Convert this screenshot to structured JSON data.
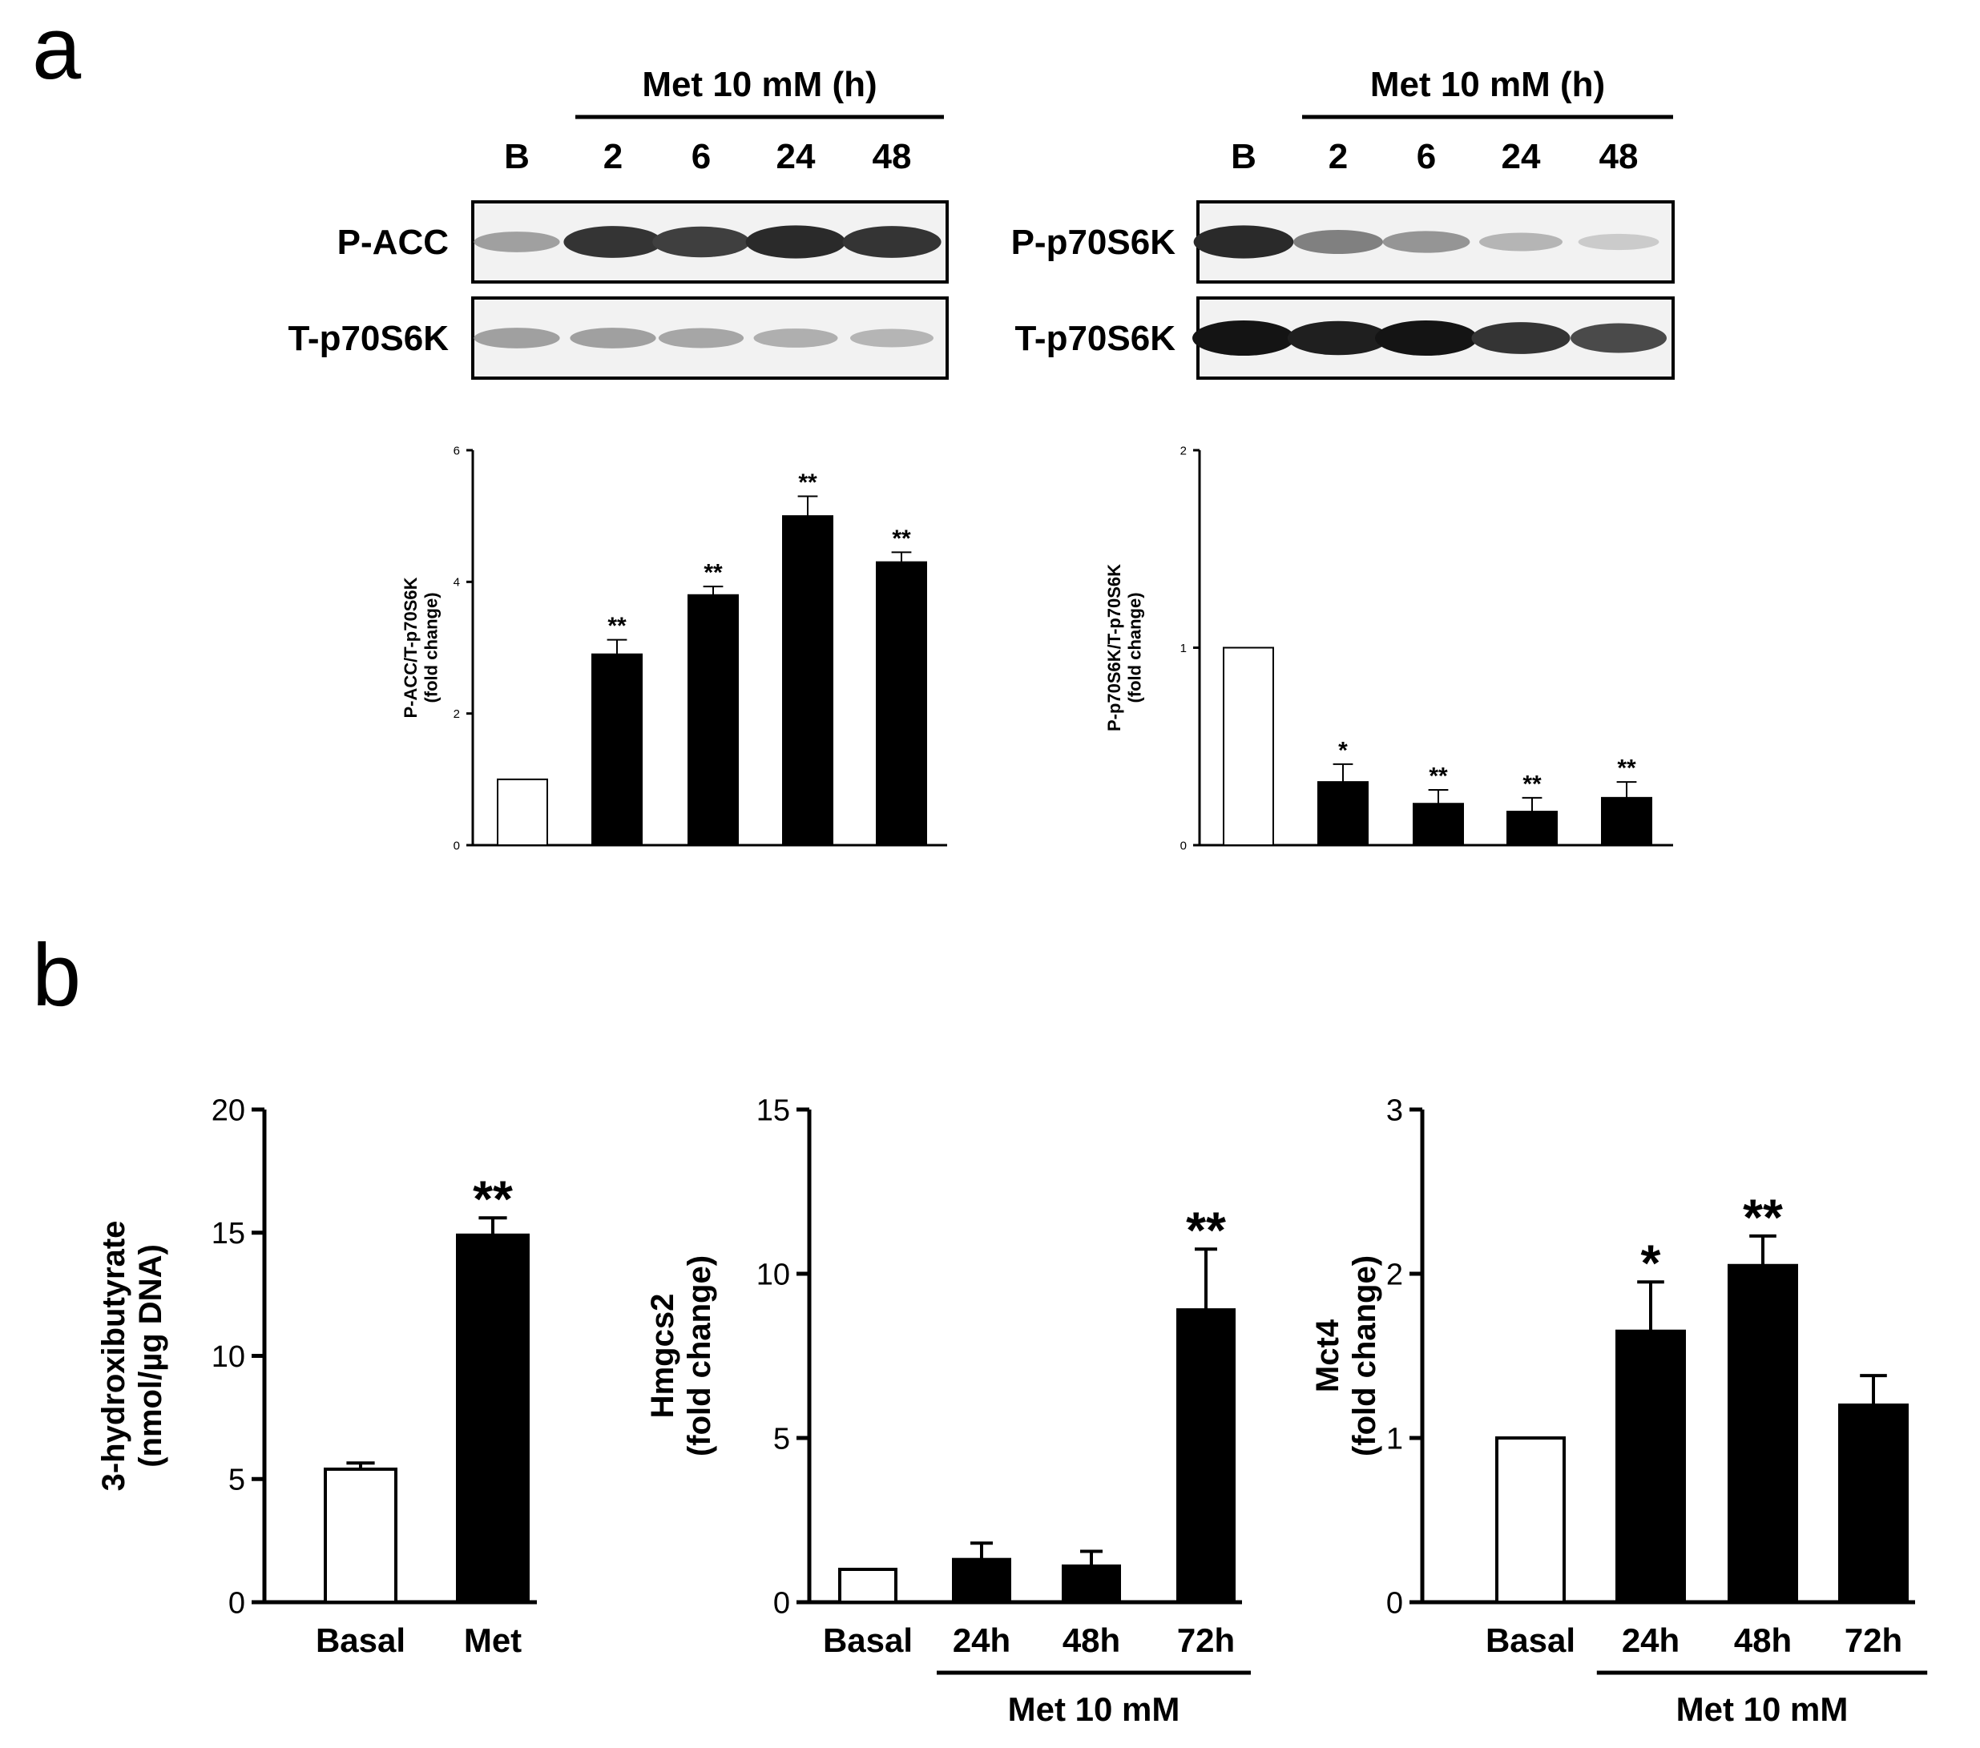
{
  "panel_labels": {
    "a": "a",
    "b": "b"
  },
  "colors": {
    "control_fill": "#ffffff",
    "treated_fill": "#000000",
    "axis": "#000000"
  },
  "blots": [
    {
      "header": "Met 10 mM (h)",
      "lanes": [
        "B",
        "2",
        "6",
        "24",
        "48"
      ],
      "rows": [
        {
          "label": "P-ACC",
          "intensities": [
            0.35,
            0.85,
            0.8,
            0.9,
            0.85
          ]
        },
        {
          "label": "T-p70S6K",
          "intensities": [
            0.35,
            0.35,
            0.32,
            0.28,
            0.25
          ]
        }
      ]
    },
    {
      "header": "Met 10 mM (h)",
      "lanes": [
        "B",
        "2",
        "6",
        "24",
        "48"
      ],
      "rows": [
        {
          "label": "P-p70S6K",
          "intensities": [
            0.9,
            0.5,
            0.4,
            0.25,
            0.15
          ]
        },
        {
          "label": "T-p70S6K",
          "intensities": [
            1.0,
            0.95,
            1.0,
            0.85,
            0.75
          ]
        }
      ]
    }
  ],
  "chart_data": [
    {
      "type": "bar",
      "ylabel": "P-ACC/T-p70S6K\n(fold change)",
      "xlabel": "",
      "ylim": [
        0,
        6
      ],
      "yticks": [
        "0",
        "2",
        "4",
        "6"
      ],
      "categories": [
        "B",
        "2",
        "6",
        "24",
        "48"
      ],
      "values": [
        1.0,
        2.9,
        3.8,
        5.0,
        4.3
      ],
      "errors": [
        0,
        0.22,
        0.13,
        0.3,
        0.15
      ],
      "significance": [
        "",
        "**",
        "**",
        "**",
        "**"
      ],
      "tick_labels_visible": false,
      "grid": false
    },
    {
      "type": "bar",
      "ylabel": "P-p70S6K/T-p70S6K\n(fold change)",
      "xlabel": "",
      "ylim": [
        0,
        2
      ],
      "yticks": [
        "0",
        "1",
        "2"
      ],
      "categories": [
        "B",
        "2",
        "6",
        "24",
        "48"
      ],
      "values": [
        1.0,
        0.32,
        0.21,
        0.17,
        0.24
      ],
      "errors": [
        0,
        0.09,
        0.07,
        0.07,
        0.08
      ],
      "significance": [
        "",
        "*",
        "**",
        "**",
        "**"
      ],
      "tick_labels_visible": false,
      "grid": false
    },
    {
      "type": "bar",
      "ylabel": "3-hydroxibutyrate\n(nmol/µg DNA)",
      "xlabel": "",
      "ylim": [
        0,
        20
      ],
      "yticks": [
        "0",
        "5",
        "10",
        "15",
        "20"
      ],
      "categories": [
        "Basal",
        "Met"
      ],
      "values": [
        5.4,
        14.9
      ],
      "errors": [
        0.25,
        0.7
      ],
      "significance": [
        "",
        "**"
      ],
      "grid": false
    },
    {
      "type": "bar",
      "ylabel": "Hmgcs2\n(fold change)",
      "xlabel": "",
      "ylim": [
        0,
        15
      ],
      "yticks": [
        "0",
        "5",
        "10",
        "15"
      ],
      "categories": [
        "Basal",
        "24h",
        "48h",
        "72h"
      ],
      "values": [
        1.0,
        1.3,
        1.1,
        8.9
      ],
      "errors": [
        0,
        0.5,
        0.45,
        1.85
      ],
      "significance": [
        "",
        "",
        "",
        "**"
      ],
      "group_label": "Met 10 mM",
      "grid": false
    },
    {
      "type": "bar",
      "ylabel": "Mct4\n(fold change)",
      "xlabel": "",
      "ylim": [
        0,
        3
      ],
      "yticks": [
        "0",
        "1",
        "2",
        "3"
      ],
      "categories": [
        "Basal",
        "24h",
        "48h",
        "72h"
      ],
      "values": [
        1.0,
        1.65,
        2.05,
        1.2
      ],
      "errors": [
        0,
        0.3,
        0.18,
        0.18
      ],
      "significance": [
        "",
        "*",
        "**",
        ""
      ],
      "group_label": "Met 10 mM",
      "grid": false
    }
  ]
}
